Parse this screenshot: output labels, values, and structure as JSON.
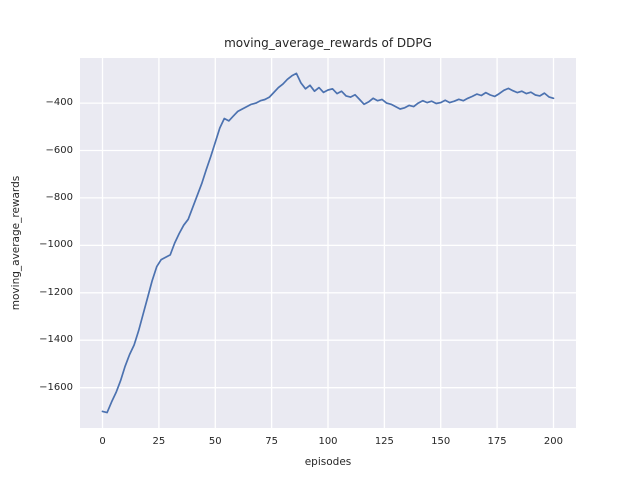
{
  "chart_data": {
    "type": "line",
    "title": "moving_average_rewards of DDPG",
    "xlabel": "episodes",
    "ylabel": "moving_average_rewards",
    "xlim": [
      -10,
      210
    ],
    "ylim": [
      -1770,
      -210
    ],
    "xticks": [
      0,
      25,
      50,
      75,
      100,
      125,
      150,
      175,
      200
    ],
    "yticks": [
      -1600,
      -1400,
      -1200,
      -1000,
      -800,
      -600,
      -400
    ],
    "grid": true,
    "legend": false,
    "line_color": "#4c72b0",
    "plot_bg_color": "#eaeaf2",
    "grid_color": "#ffffff",
    "text_color": "#262626",
    "series_name": "moving_average_rewards",
    "x": [
      0,
      2,
      4,
      6,
      8,
      10,
      12,
      14,
      16,
      18,
      20,
      22,
      24,
      26,
      28,
      30,
      32,
      34,
      36,
      38,
      40,
      42,
      44,
      46,
      48,
      50,
      52,
      54,
      56,
      58,
      60,
      62,
      64,
      66,
      68,
      70,
      72,
      74,
      76,
      78,
      80,
      82,
      84,
      86,
      88,
      90,
      92,
      94,
      96,
      98,
      100,
      102,
      104,
      106,
      108,
      110,
      112,
      114,
      116,
      118,
      120,
      122,
      124,
      126,
      128,
      130,
      132,
      134,
      136,
      138,
      140,
      142,
      144,
      146,
      148,
      150,
      152,
      154,
      156,
      158,
      160,
      162,
      164,
      166,
      168,
      170,
      172,
      174,
      176,
      178,
      180,
      182,
      184,
      186,
      188,
      190,
      192,
      194,
      196,
      198,
      200
    ],
    "y": [
      -1700,
      -1705,
      -1660,
      -1620,
      -1570,
      -1510,
      -1460,
      -1420,
      -1360,
      -1290,
      -1220,
      -1150,
      -1090,
      -1060,
      -1050,
      -1040,
      -990,
      -950,
      -915,
      -890,
      -840,
      -790,
      -740,
      -680,
      -625,
      -565,
      -505,
      -465,
      -475,
      -455,
      -435,
      -425,
      -415,
      -405,
      -400,
      -390,
      -385,
      -375,
      -355,
      -335,
      -320,
      -300,
      -285,
      -275,
      -315,
      -340,
      -325,
      -350,
      -335,
      -355,
      -345,
      -340,
      -360,
      -350,
      -370,
      -375,
      -365,
      -385,
      -405,
      -395,
      -380,
      -390,
      -385,
      -400,
      -405,
      -415,
      -425,
      -420,
      -410,
      -415,
      -400,
      -390,
      -398,
      -392,
      -402,
      -398,
      -388,
      -398,
      -392,
      -384,
      -390,
      -380,
      -372,
      -362,
      -368,
      -356,
      -366,
      -372,
      -360,
      -346,
      -338,
      -348,
      -356,
      -350,
      -360,
      -354,
      -366,
      -370,
      -358,
      -374,
      -380
    ]
  }
}
